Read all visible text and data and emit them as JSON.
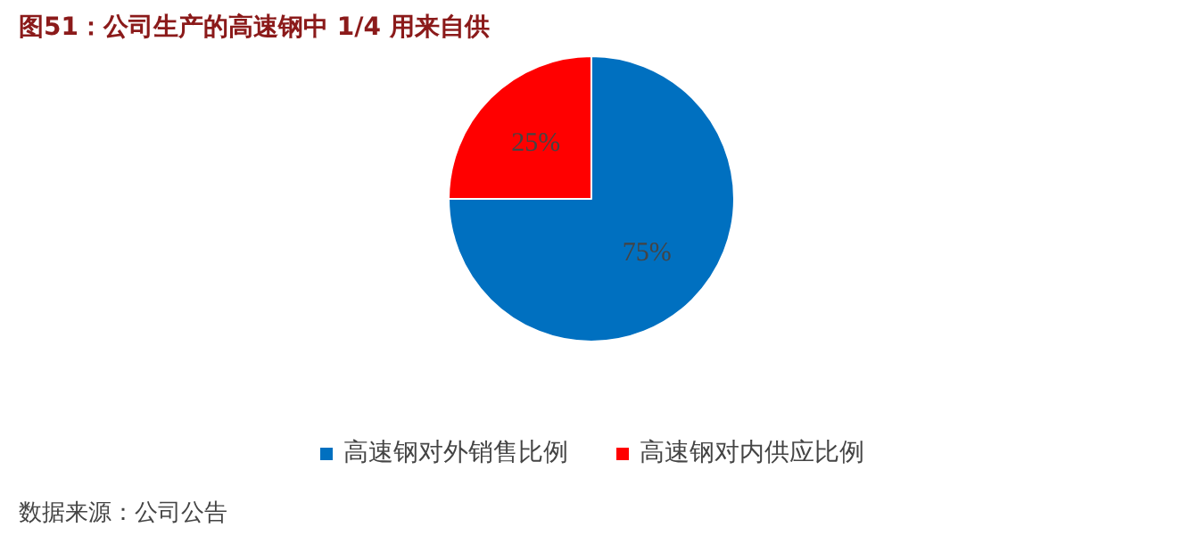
{
  "chart_data": {
    "type": "pie",
    "title": "图51：公司生产的高速钢中 1/4 用来自供",
    "categories": [
      "高速钢对外销售比例",
      "高速钢对内供应比例"
    ],
    "values": [
      75,
      25
    ],
    "colors": [
      "#0070c0",
      "#ff0000"
    ],
    "value_labels": [
      "75%",
      "25%"
    ],
    "legend": "bottom",
    "annotations": [
      "数据来源：公司公告"
    ]
  }
}
